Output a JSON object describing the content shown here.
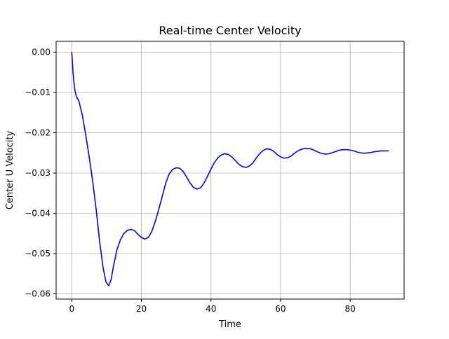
{
  "chart_data": {
    "type": "line",
    "title": "Real-time Center Velocity",
    "xlabel": "Time",
    "ylabel": "Center U Velocity",
    "xlim": [
      -4.5,
      95.5
    ],
    "ylim": [
      -0.0613,
      0.0027
    ],
    "xticks": [
      0,
      20,
      40,
      60,
      80
    ],
    "xtick_labels": [
      "0",
      "20",
      "40",
      "60",
      "80"
    ],
    "yticks": [
      0.0,
      -0.01,
      -0.02,
      -0.03,
      -0.04,
      -0.05,
      -0.06
    ],
    "ytick_labels": [
      "0.00",
      "−0.01",
      "−0.02",
      "−0.03",
      "−0.04",
      "−0.05",
      "−0.06"
    ],
    "grid": true,
    "legend": "none",
    "series": [
      {
        "color": "#0000ff",
        "points": [
          [
            0.0,
            0.0
          ],
          [
            0.4,
            -0.0055
          ],
          [
            0.8,
            -0.009
          ],
          [
            1.3,
            -0.011
          ],
          [
            2.0,
            -0.012
          ],
          [
            3.0,
            -0.0155
          ],
          [
            4.0,
            -0.0205
          ],
          [
            5.0,
            -0.026
          ],
          [
            6.0,
            -0.032
          ],
          [
            7.0,
            -0.039
          ],
          [
            8.0,
            -0.047
          ],
          [
            9.0,
            -0.0535
          ],
          [
            9.8,
            -0.057
          ],
          [
            10.6,
            -0.058
          ],
          [
            11.3,
            -0.0565
          ],
          [
            12.0,
            -0.053
          ],
          [
            13.0,
            -0.049
          ],
          [
            14.0,
            -0.0465
          ],
          [
            15.0,
            -0.045
          ],
          [
            16.0,
            -0.0442
          ],
          [
            17.0,
            -0.044
          ],
          [
            18.0,
            -0.0443
          ],
          [
            19.0,
            -0.0452
          ],
          [
            20.0,
            -0.046
          ],
          [
            21.0,
            -0.0464
          ],
          [
            22.0,
            -0.046
          ],
          [
            23.0,
            -0.0445
          ],
          [
            24.0,
            -0.042
          ],
          [
            25.0,
            -0.039
          ],
          [
            26.0,
            -0.0358
          ],
          [
            27.0,
            -0.0325
          ],
          [
            28.0,
            -0.0302
          ],
          [
            29.0,
            -0.0291
          ],
          [
            30.0,
            -0.0287
          ],
          [
            31.0,
            -0.0288
          ],
          [
            32.0,
            -0.0296
          ],
          [
            33.0,
            -0.031
          ],
          [
            34.0,
            -0.0325
          ],
          [
            35.0,
            -0.0336
          ],
          [
            36.0,
            -0.034
          ],
          [
            37.0,
            -0.0337
          ],
          [
            38.0,
            -0.0325
          ],
          [
            39.0,
            -0.0308
          ],
          [
            40.0,
            -0.029
          ],
          [
            41.0,
            -0.0274
          ],
          [
            42.0,
            -0.0262
          ],
          [
            43.0,
            -0.0255
          ],
          [
            44.0,
            -0.0252
          ],
          [
            45.0,
            -0.0254
          ],
          [
            46.0,
            -0.026
          ],
          [
            47.0,
            -0.0269
          ],
          [
            48.0,
            -0.0278
          ],
          [
            49.0,
            -0.0284
          ],
          [
            50.0,
            -0.0286
          ],
          [
            51.0,
            -0.0283
          ],
          [
            52.0,
            -0.0275
          ],
          [
            53.0,
            -0.0263
          ],
          [
            54.0,
            -0.0252
          ],
          [
            55.0,
            -0.0244
          ],
          [
            56.0,
            -0.024
          ],
          [
            57.0,
            -0.0241
          ],
          [
            58.0,
            -0.0246
          ],
          [
            59.0,
            -0.0254
          ],
          [
            60.0,
            -0.026
          ],
          [
            61.0,
            -0.0263
          ],
          [
            62.0,
            -0.0262
          ],
          [
            63.0,
            -0.0258
          ],
          [
            64.0,
            -0.0251
          ],
          [
            65.0,
            -0.0245
          ],
          [
            66.0,
            -0.0241
          ],
          [
            67.0,
            -0.0239
          ],
          [
            68.0,
            -0.0239
          ],
          [
            69.0,
            -0.0241
          ],
          [
            70.0,
            -0.0245
          ],
          [
            71.0,
            -0.0249
          ],
          [
            72.0,
            -0.0252
          ],
          [
            73.0,
            -0.0253
          ],
          [
            74.0,
            -0.0252
          ],
          [
            75.0,
            -0.0249
          ],
          [
            76.0,
            -0.0246
          ],
          [
            77.0,
            -0.0243
          ],
          [
            78.0,
            -0.0242
          ],
          [
            79.0,
            -0.0242
          ],
          [
            80.0,
            -0.0243
          ],
          [
            81.0,
            -0.0245
          ],
          [
            82.0,
            -0.0248
          ],
          [
            83.0,
            -0.025
          ],
          [
            84.0,
            -0.0251
          ],
          [
            85.0,
            -0.025
          ],
          [
            86.0,
            -0.0249
          ],
          [
            87.0,
            -0.0247
          ],
          [
            88.0,
            -0.0246
          ],
          [
            89.0,
            -0.0245
          ],
          [
            90.0,
            -0.0245
          ],
          [
            91.0,
            -0.0245
          ]
        ]
      }
    ]
  }
}
